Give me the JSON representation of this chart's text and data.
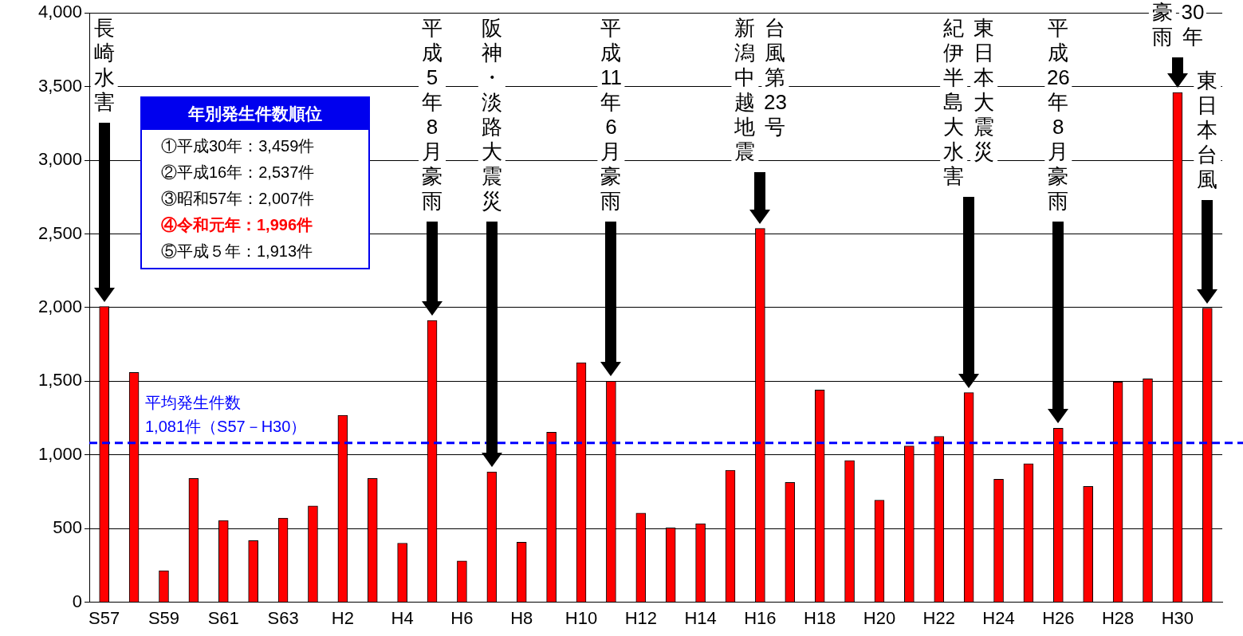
{
  "chart_data": {
    "type": "bar",
    "categories": [
      "S57",
      null,
      "S59",
      null,
      "S61",
      null,
      "S63",
      null,
      "H2",
      null,
      "H4",
      null,
      "H6",
      null,
      "H8",
      null,
      "H10",
      null,
      "H12",
      null,
      "H14",
      null,
      "H16",
      null,
      "H18",
      null,
      "H20",
      null,
      "H22",
      null,
      "H24",
      null,
      "H26",
      null,
      "H28",
      null,
      "H30",
      null
    ],
    "values": [
      2007,
      1560,
      214,
      840,
      555,
      418,
      571,
      654,
      1269,
      840,
      401,
      1913,
      280,
      885,
      407,
      1154,
      1626,
      1500,
      604,
      505,
      533,
      896,
      2537,
      813,
      1440,
      962,
      692,
      1060,
      1126,
      1423,
      835,
      940,
      1181,
      786,
      1495,
      1516,
      3459,
      1996
    ],
    "color": "#ff0000",
    "ylim": [
      0,
      4000
    ],
    "yticks": [
      0,
      500,
      {
        "value": 1000,
        "label": "1,000"
      },
      {
        "value": 1500,
        "label": "1,500"
      },
      {
        "value": 2000,
        "label": "2,000"
      },
      {
        "value": 2500,
        "label": "2,500"
      },
      {
        "value": 3000,
        "label": "3,000"
      },
      {
        "value": 3500,
        "label": "3,500"
      },
      {
        "value": 4000,
        "label": "4,000"
      }
    ],
    "grid": "y",
    "ref_lines": [
      {
        "axis": "y",
        "value": 1081,
        "label": "平均発生件数\n1,081件（S57－H30）",
        "color": "#0000ff",
        "line_style": "dashed"
      }
    ],
    "annotations": [
      "長崎水害",
      "平成5年8月豪雨",
      "阪神・淡路大震災",
      "平成11年6月豪雨",
      "台風第23号",
      "新潟中越地震",
      "東日本大震災",
      "紀伊半島大水害",
      "平成26年8月豪雨",
      "30年",
      "豪雨",
      "東日本台風",
      "年別発生件数順位",
      "①平成30年：3,459件",
      "②平成16年：2,537件",
      "③昭和57年：2,007件",
      "④令和元年：1,996件",
      "⑤平成５年：1,913件"
    ]
  }
}
